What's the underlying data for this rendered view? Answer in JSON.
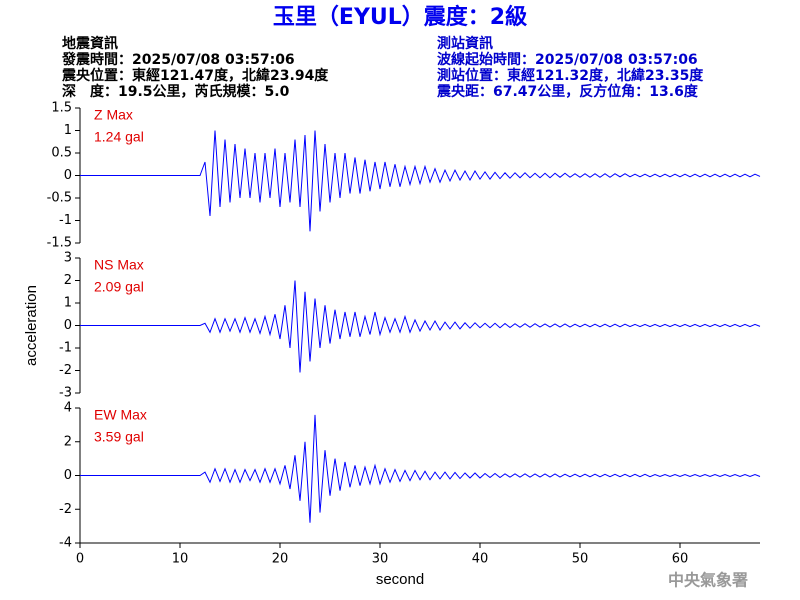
{
  "header": {
    "title": "玉里（EYUL）震度：2級",
    "left": [
      "地震資訊",
      "發震時間：2025/07/08 03:57:06",
      "震央位置：東經121.47度，北緯23.94度",
      "深　度：19.5公里，芮氏規模：5.0"
    ],
    "right": [
      "測站資訊",
      "波線起始時間：2025/07/08 03:57:06",
      "測站位置：東經121.32度，北緯23.35度",
      "震央距：67.47公里，反方位角：13.6度"
    ]
  },
  "watermark": "中央氣象署",
  "chart_data": [
    {
      "type": "line",
      "annotation": [
        "Z Max",
        "1.24 gal"
      ],
      "color": "#0000ff",
      "xlim": [
        0,
        68
      ],
      "ylim": [
        -1.5,
        1.5
      ],
      "yticks": [
        -1.5,
        -1,
        -0.5,
        0,
        0.5,
        1,
        1.5
      ],
      "x": [
        0,
        12,
        12.5,
        13,
        13.5,
        14,
        14.5,
        15,
        15.5,
        16,
        16.5,
        17,
        17.5,
        18,
        18.5,
        19,
        19.5,
        20,
        20.5,
        21,
        21.5,
        22,
        22.5,
        23,
        23.5,
        24,
        24.5,
        25,
        25.5,
        26,
        26.5,
        27,
        27.5,
        28,
        28.5,
        29,
        29.5,
        30,
        30.5,
        31,
        31.5,
        32,
        32.5,
        33,
        33.5,
        34,
        34.5,
        35,
        35.5,
        36,
        36.5,
        37,
        37.5,
        38,
        38.5,
        39,
        39.5,
        40,
        40.5,
        41,
        41.5,
        42,
        42.5,
        43,
        43.5,
        44,
        44.5,
        45,
        45.5,
        46,
        46.5,
        47,
        47.5,
        48,
        48.5,
        49,
        49.5,
        50,
        50.5,
        51,
        51.5,
        52,
        52.5,
        53,
        53.5,
        54,
        54.5,
        55,
        55.5,
        56,
        56.5,
        57,
        57.5,
        58,
        58.5,
        59,
        59.5,
        60,
        60.5,
        61,
        61.5,
        62,
        62.5,
        63,
        63.5,
        64,
        64.5,
        65,
        65.5,
        66,
        66.5,
        67,
        67.5,
        68
      ],
      "values": [
        0,
        0,
        0.3,
        -0.9,
        1.0,
        -0.7,
        0.8,
        -0.6,
        0.7,
        -0.5,
        0.6,
        -0.5,
        0.5,
        -0.6,
        0.5,
        -0.5,
        0.6,
        -0.7,
        0.5,
        -0.6,
        0.8,
        -0.7,
        0.9,
        -1.24,
        1.0,
        -0.8,
        0.7,
        -0.6,
        0.5,
        -0.5,
        0.5,
        -0.4,
        0.4,
        -0.4,
        0.35,
        -0.35,
        0.3,
        -0.3,
        0.3,
        -0.25,
        0.25,
        -0.25,
        0.2,
        -0.2,
        0.2,
        -0.18,
        0.2,
        -0.15,
        0.15,
        -0.15,
        0.12,
        -0.12,
        0.12,
        -0.1,
        0.1,
        -0.1,
        0.1,
        -0.08,
        0.08,
        -0.08,
        0.07,
        -0.07,
        0.06,
        -0.06,
        0.06,
        -0.05,
        0.06,
        -0.05,
        0.05,
        -0.05,
        0.05,
        -0.05,
        0.05,
        -0.04,
        0.05,
        -0.04,
        0.04,
        -0.04,
        0.04,
        -0.04,
        0.04,
        -0.04,
        0.04,
        -0.04,
        0.04,
        -0.03,
        0.04,
        -0.03,
        0.03,
        -0.03,
        0.03,
        -0.03,
        0.03,
        -0.03,
        0.03,
        -0.03,
        0.03,
        -0.03,
        0.03,
        -0.03,
        0.03,
        -0.03,
        0.03,
        -0.03,
        0.03,
        -0.03,
        0.03,
        -0.03,
        0.03,
        -0.03,
        0.03,
        -0.03,
        0.03,
        -0.02
      ]
    },
    {
      "type": "line",
      "annotation": [
        "NS Max",
        "2.09 gal"
      ],
      "color": "#0000ff",
      "ylabel": "acceleration",
      "xlim": [
        0,
        68
      ],
      "ylim": [
        -3,
        3
      ],
      "yticks": [
        -3,
        -2,
        -1,
        0,
        1,
        2,
        3
      ],
      "x": [
        0,
        12,
        12.5,
        13,
        13.5,
        14,
        14.5,
        15,
        15.5,
        16,
        16.5,
        17,
        17.5,
        18,
        18.5,
        19,
        19.5,
        20,
        20.5,
        21,
        21.5,
        22,
        22.5,
        23,
        23.5,
        24,
        24.5,
        25,
        25.5,
        26,
        26.5,
        27,
        27.5,
        28,
        28.5,
        29,
        29.5,
        30,
        30.5,
        31,
        31.5,
        32,
        32.5,
        33,
        33.5,
        34,
        34.5,
        35,
        35.5,
        36,
        36.5,
        37,
        37.5,
        38,
        38.5,
        39,
        39.5,
        40,
        40.5,
        41,
        41.5,
        42,
        42.5,
        43,
        43.5,
        44,
        44.5,
        45,
        45.5,
        46,
        46.5,
        47,
        47.5,
        48,
        48.5,
        49,
        49.5,
        50,
        50.5,
        51,
        51.5,
        52,
        52.5,
        53,
        53.5,
        54,
        54.5,
        55,
        55.5,
        56,
        56.5,
        57,
        57.5,
        58,
        58.5,
        59,
        59.5,
        60,
        60.5,
        61,
        61.5,
        62,
        62.5,
        63,
        63.5,
        64,
        64.5,
        65,
        65.5,
        66,
        66.5,
        67,
        67.5,
        68
      ],
      "values": [
        0,
        0,
        0.1,
        -0.3,
        0.3,
        -0.3,
        0.3,
        -0.25,
        0.3,
        -0.3,
        0.35,
        -0.3,
        0.3,
        -0.35,
        0.4,
        -0.4,
        0.5,
        -0.6,
        0.9,
        -1.0,
        2.0,
        -2.09,
        1.5,
        -1.6,
        1.2,
        -1.0,
        0.9,
        -0.8,
        0.7,
        -0.6,
        0.6,
        -0.5,
        0.6,
        -0.5,
        0.4,
        -0.4,
        0.6,
        -0.4,
        0.35,
        -0.3,
        0.3,
        -0.3,
        0.4,
        -0.3,
        0.25,
        -0.25,
        0.2,
        -0.2,
        0.2,
        -0.2,
        0.15,
        -0.15,
        0.15,
        -0.15,
        0.12,
        -0.12,
        0.12,
        -0.1,
        0.1,
        -0.1,
        0.1,
        -0.1,
        0.09,
        -0.09,
        0.08,
        -0.08,
        0.08,
        -0.08,
        0.08,
        -0.07,
        0.07,
        -0.07,
        0.07,
        -0.07,
        0.07,
        -0.07,
        0.06,
        -0.06,
        0.06,
        -0.06,
        0.06,
        -0.06,
        0.06,
        -0.06,
        0.06,
        -0.06,
        0.06,
        -0.05,
        0.05,
        -0.05,
        0.05,
        -0.05,
        0.05,
        -0.05,
        0.05,
        -0.05,
        0.05,
        -0.05,
        0.05,
        -0.05,
        0.05,
        -0.05,
        0.05,
        -0.05,
        0.05,
        -0.05,
        0.05,
        -0.05,
        0.05,
        -0.05,
        0.05,
        -0.05,
        0.05,
        -0.04
      ]
    },
    {
      "type": "line",
      "annotation": [
        "EW Max",
        "3.59 gal"
      ],
      "color": "#0000ff",
      "xlabel": "second",
      "xlim": [
        0,
        68
      ],
      "xticks": [
        0,
        10,
        20,
        30,
        40,
        50,
        60
      ],
      "ylim": [
        -4,
        4
      ],
      "yticks": [
        -4,
        -2,
        0,
        2,
        4
      ],
      "x": [
        0,
        12,
        12.5,
        13,
        13.5,
        14,
        14.5,
        15,
        15.5,
        16,
        16.5,
        17,
        17.5,
        18,
        18.5,
        19,
        19.5,
        20,
        20.5,
        21,
        21.5,
        22,
        22.5,
        23,
        23.5,
        24,
        24.5,
        25,
        25.5,
        26,
        26.5,
        27,
        27.5,
        28,
        28.5,
        29,
        29.5,
        30,
        30.5,
        31,
        31.5,
        32,
        32.5,
        33,
        33.5,
        34,
        34.5,
        35,
        35.5,
        36,
        36.5,
        37,
        37.5,
        38,
        38.5,
        39,
        39.5,
        40,
        40.5,
        41,
        41.5,
        42,
        42.5,
        43,
        43.5,
        44,
        44.5,
        45,
        45.5,
        46,
        46.5,
        47,
        47.5,
        48,
        48.5,
        49,
        49.5,
        50,
        50.5,
        51,
        51.5,
        52,
        52.5,
        53,
        53.5,
        54,
        54.5,
        55,
        55.5,
        56,
        56.5,
        57,
        57.5,
        58,
        58.5,
        59,
        59.5,
        60,
        60.5,
        61,
        61.5,
        62,
        62.5,
        63,
        63.5,
        64,
        64.5,
        65,
        65.5,
        66,
        66.5,
        67,
        67.5,
        68
      ],
      "values": [
        0,
        0,
        0.2,
        -0.4,
        0.4,
        -0.35,
        0.4,
        -0.4,
        0.35,
        -0.4,
        0.35,
        -0.3,
        0.35,
        -0.4,
        0.4,
        -0.4,
        0.4,
        -0.5,
        0.6,
        -0.8,
        1.2,
        -1.5,
        2.0,
        -2.8,
        3.59,
        -2.2,
        1.5,
        -1.2,
        1.0,
        -0.9,
        0.8,
        -0.7,
        0.6,
        -0.6,
        0.5,
        -0.5,
        0.6,
        -0.5,
        0.4,
        -0.4,
        0.35,
        -0.35,
        0.3,
        -0.3,
        0.3,
        -0.25,
        0.25,
        -0.25,
        0.2,
        -0.2,
        0.2,
        -0.2,
        0.18,
        -0.18,
        0.15,
        -0.15,
        0.15,
        -0.15,
        0.12,
        -0.12,
        0.12,
        -0.12,
        0.1,
        -0.1,
        0.1,
        -0.1,
        0.1,
        -0.1,
        0.09,
        -0.09,
        0.09,
        -0.09,
        0.09,
        -0.09,
        0.08,
        -0.08,
        0.08,
        -0.08,
        0.08,
        -0.08,
        0.08,
        -0.08,
        0.07,
        -0.07,
        0.07,
        -0.07,
        0.07,
        -0.07,
        0.07,
        -0.07,
        0.07,
        -0.07,
        0.06,
        -0.06,
        0.06,
        -0.06,
        0.06,
        -0.06,
        0.06,
        -0.06,
        0.06,
        -0.06,
        0.06,
        -0.06,
        0.06,
        -0.06,
        0.06,
        -0.06,
        0.06,
        -0.06,
        0.06,
        -0.06,
        0.06,
        -0.06
      ]
    }
  ]
}
